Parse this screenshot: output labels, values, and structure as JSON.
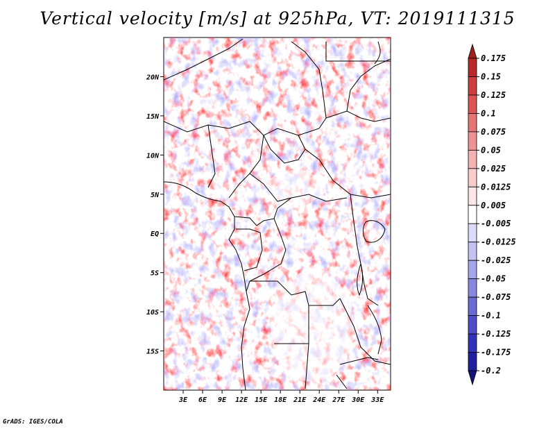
{
  "title": "Vertical velocity [m/s] at 925hPa, VT: 2019111315",
  "footer": "GrADS: IGES/COLA",
  "map": {
    "lon_range": [
      0,
      35
    ],
    "lat_range": [
      -20,
      25
    ],
    "lon_ticks": [
      "3E",
      "6E",
      "9E",
      "12E",
      "15E",
      "18E",
      "21E",
      "24E",
      "27E",
      "30E",
      "33E"
    ],
    "lat_ticks": [
      "20N",
      "15N",
      "10N",
      "5N",
      "EQ",
      "5S",
      "10S",
      "15S"
    ]
  },
  "colorbar": {
    "labels": [
      "0.175",
      "0.15",
      "0.125",
      "0.1",
      "0.075",
      "0.05",
      "0.025",
      "0.0125",
      "0.005",
      "-0.005",
      "-0.0125",
      "-0.025",
      "-0.05",
      "-0.075",
      "-0.1",
      "-0.125",
      "-0.175",
      "-0.2"
    ],
    "colors": [
      "#a01f1f",
      "#b82a2a",
      "#cc3d3d",
      "#dc5555",
      "#e67676",
      "#ee9393",
      "#f5b2b2",
      "#f9cdcd",
      "#fce6e6",
      "#ffffff",
      "#dcdcf9",
      "#c3c3f2",
      "#a5a5ea",
      "#8888e0",
      "#6b6bd6",
      "#4d4dc9",
      "#3232b8",
      "#1e1e9e",
      "#14147a"
    ]
  }
}
